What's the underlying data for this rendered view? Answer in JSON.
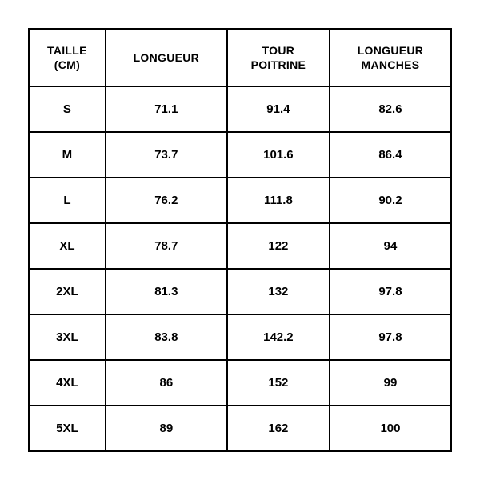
{
  "table": {
    "type": "table",
    "border_color": "#000000",
    "border_width": 2,
    "background_color": "#ffffff",
    "text_color": "#000000",
    "header_fontsize": 14,
    "cell_fontsize": 15,
    "font_weight": 700,
    "alignment": "center",
    "columns": [
      {
        "label": "TAILLE\n(CM)",
        "label_line1": "TAILLE",
        "label_line2": "(CM)"
      },
      {
        "label": "LONGUEUR",
        "label_line1": "LONGUEUR",
        "label_line2": ""
      },
      {
        "label": "TOUR\nPOITRINE",
        "label_line1": "TOUR",
        "label_line2": "POITRINE"
      },
      {
        "label": "LONGUEUR\nMANCHES",
        "label_line1": "LONGUEUR",
        "label_line2": "MANCHES"
      }
    ],
    "rows": [
      {
        "size": "S",
        "longueur": "71.1",
        "tour_poitrine": "91.4",
        "longueur_manches": "82.6"
      },
      {
        "size": "M",
        "longueur": "73.7",
        "tour_poitrine": "101.6",
        "longueur_manches": "86.4"
      },
      {
        "size": "L",
        "longueur": "76.2",
        "tour_poitrine": "111.8",
        "longueur_manches": "90.2"
      },
      {
        "size": "XL",
        "longueur": "78.7",
        "tour_poitrine": "122",
        "longueur_manches": "94"
      },
      {
        "size": "2XL",
        "longueur": "81.3",
        "tour_poitrine": "132",
        "longueur_manches": "97.8"
      },
      {
        "size": "3XL",
        "longueur": "83.8",
        "tour_poitrine": "142.2",
        "longueur_manches": "97.8"
      },
      {
        "size": "4XL",
        "longueur": "86",
        "tour_poitrine": "152",
        "longueur_manches": "99"
      },
      {
        "size": "5XL",
        "longueur": "89",
        "tour_poitrine": "162",
        "longueur_manches": "100"
      }
    ]
  }
}
